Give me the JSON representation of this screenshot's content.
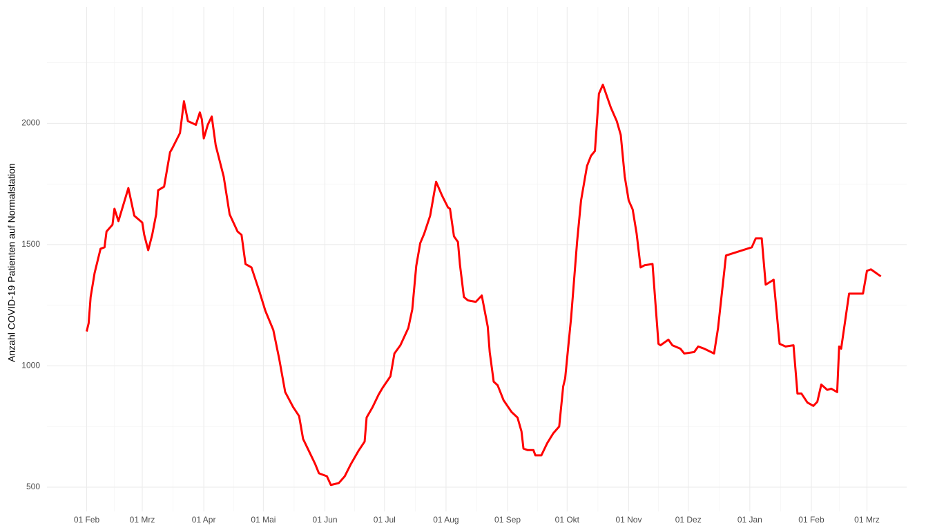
{
  "chart_data": {
    "type": "line",
    "y_label": "Anzahl COVID-19 Patienten auf Normalstation",
    "grid": true,
    "xlim": [
      -20,
      413
    ],
    "ylim": [
      400,
      2480
    ],
    "xticks": [
      {
        "value": 0,
        "label": "01 Feb"
      },
      {
        "value": 28,
        "label": "01 Mrz"
      },
      {
        "value": 59,
        "label": "01 Apr"
      },
      {
        "value": 89,
        "label": "01 Mai"
      },
      {
        "value": 120,
        "label": "01 Jun"
      },
      {
        "value": 150,
        "label": "01 Jul"
      },
      {
        "value": 181,
        "label": "01 Aug"
      },
      {
        "value": 212,
        "label": "01 Sep"
      },
      {
        "value": 242,
        "label": "01 Okt"
      },
      {
        "value": 273,
        "label": "01 Nov"
      },
      {
        "value": 303,
        "label": "01 Dez"
      },
      {
        "value": 334,
        "label": "01 Jan"
      },
      {
        "value": 365,
        "label": "01 Feb"
      },
      {
        "value": 393,
        "label": "01 Mrz"
      }
    ],
    "yticks": [
      500,
      1000,
      1500,
      2000
    ],
    "y_minor_ticks": [
      750,
      1250,
      1750,
      2250
    ],
    "series": [
      {
        "color": "#ff0000",
        "x": [
          0,
          1,
          2,
          4,
          7,
          9,
          10,
          13,
          14,
          16,
          21,
          24,
          28,
          29,
          31,
          33,
          35,
          36,
          39,
          42,
          43,
          47,
          49,
          51,
          55,
          57,
          58,
          59,
          61,
          63,
          65,
          69,
          72,
          76,
          78,
          80,
          83,
          87,
          90,
          94,
          97,
          100,
          104,
          107,
          109,
          112,
          115,
          117,
          121,
          123,
          127,
          130,
          133,
          137,
          140,
          141,
          144,
          147,
          149,
          153,
          155,
          158,
          162,
          164,
          166,
          168,
          170,
          173,
          176,
          179,
          182,
          183,
          185,
          187,
          188,
          190,
          192,
          196,
          199,
          202,
          203,
          205,
          207,
          210,
          214,
          217,
          219,
          220,
          222,
          225,
          226,
          229,
          232,
          235,
          238,
          240,
          241,
          244,
          247,
          249,
          252,
          254,
          256,
          258,
          260,
          264,
          267,
          269,
          271,
          273,
          275,
          277,
          279,
          281,
          285,
          288,
          289,
          293,
          295,
          299,
          301,
          306,
          308,
          311,
          316,
          318,
          322,
          335,
          337,
          340,
          342,
          346,
          349,
          352,
          356,
          358,
          360,
          363,
          366,
          368,
          370,
          373,
          375,
          378,
          379,
          380,
          384,
          387,
          391,
          393,
          395,
          400
        ],
        "values": [
          1142,
          1176,
          1284,
          1383,
          1483,
          1489,
          1554,
          1582,
          1648,
          1597,
          1733,
          1619,
          1591,
          1540,
          1477,
          1540,
          1625,
          1724,
          1739,
          1881,
          1895,
          1960,
          2091,
          2009,
          1994,
          2045,
          2017,
          1938,
          1994,
          2028,
          1909,
          1781,
          1625,
          1554,
          1540,
          1420,
          1406,
          1307,
          1227,
          1148,
          1028,
          892,
          830,
          793,
          699,
          648,
          597,
          557,
          545,
          509,
          517,
          545,
          594,
          651,
          688,
          787,
          830,
          881,
          909,
          957,
          1051,
          1085,
          1156,
          1233,
          1412,
          1506,
          1545,
          1619,
          1759,
          1702,
          1653,
          1648,
          1534,
          1511,
          1418,
          1284,
          1270,
          1264,
          1290,
          1162,
          1057,
          935,
          920,
          858,
          810,
          787,
          730,
          659,
          653,
          653,
          631,
          631,
          682,
          722,
          750,
          915,
          949,
          1199,
          1511,
          1682,
          1824,
          1866,
          1886,
          2122,
          2159,
          2065,
          2009,
          1952,
          1781,
          1682,
          1645,
          1545,
          1406,
          1415,
          1420,
          1091,
          1085,
          1108,
          1085,
          1071,
          1051,
          1057,
          1080,
          1071,
          1051,
          1156,
          1455,
          1489,
          1526,
          1526,
          1335,
          1355,
          1091,
          1080,
          1085,
          886,
          886,
          849,
          835,
          852,
          923,
          901,
          906,
          892,
          1080,
          1071,
          1298,
          1298,
          1298,
          1392,
          1398,
          1369
        ]
      }
    ]
  }
}
